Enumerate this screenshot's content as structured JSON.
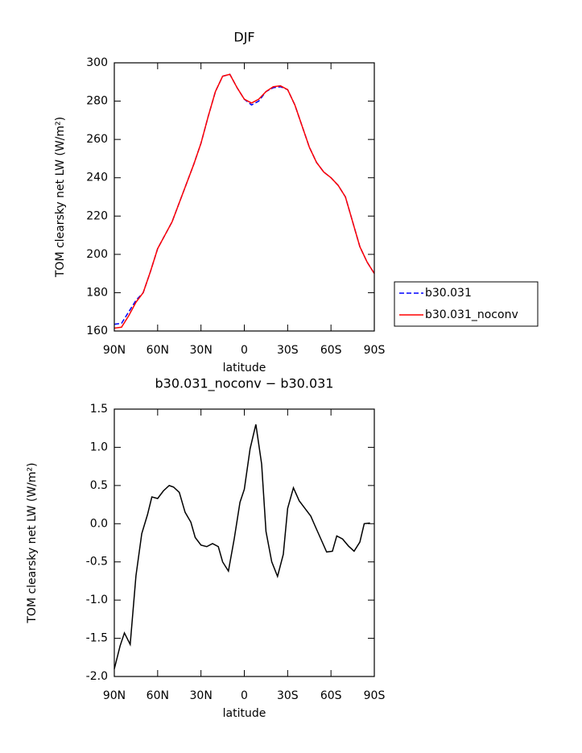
{
  "chart_data": [
    {
      "type": "line",
      "title": "DJF",
      "x_label": "latitude",
      "y_label": "TOM clearsky net LW (W/m²)",
      "x": [
        90,
        85,
        80,
        75,
        70,
        65,
        60,
        55,
        50,
        45,
        40,
        35,
        30,
        25,
        20,
        15,
        10,
        5,
        0,
        -5,
        -10,
        -15,
        -20,
        -25,
        -30,
        -35,
        -40,
        -45,
        -50,
        -55,
        -60,
        -65,
        -70,
        -75,
        -80,
        -85,
        -90
      ],
      "series": [
        {
          "name": "b30.031",
          "color": "#0000ff",
          "dashed": true,
          "values": [
            163.5,
            164,
            170,
            176,
            180,
            191,
            203,
            210,
            217,
            227,
            237,
            247,
            258,
            272,
            285,
            293,
            294,
            287,
            281,
            278,
            280,
            285,
            287,
            287.5,
            286,
            278,
            267,
            256,
            248,
            243,
            240,
            236,
            230,
            217,
            204,
            196,
            190
          ]
        },
        {
          "name": "b30.031_noconv",
          "color": "#ff0000",
          "dashed": false,
          "values": [
            161.5,
            162,
            168,
            175,
            180,
            191,
            203,
            210,
            217,
            227,
            237,
            247,
            258,
            272,
            285,
            293,
            294,
            287,
            281,
            279,
            281,
            285,
            287.5,
            288,
            286,
            278,
            267,
            256,
            248,
            243,
            240,
            236,
            230,
            217,
            204,
            196,
            190
          ]
        }
      ],
      "xlim": [
        90,
        -90
      ],
      "xticks": [
        {
          "value": 90,
          "label": "90N"
        },
        {
          "value": 60,
          "label": "60N"
        },
        {
          "value": 30,
          "label": "30N"
        },
        0,
        {
          "value": -30,
          "label": "30S"
        },
        {
          "value": -60,
          "label": "60S"
        },
        {
          "value": -90,
          "label": "90S"
        }
      ],
      "ylim": [
        160,
        300
      ],
      "yticks": [
        160,
        180,
        200,
        220,
        240,
        260,
        280,
        300
      ],
      "legend": "right"
    },
    {
      "type": "line",
      "title": "b30.031_noconv − b30.031",
      "x_label": "latitude",
      "y_label": "TOM clearsky net LW (W/m²)",
      "x": [
        90,
        86,
        83,
        79,
        75,
        71,
        67,
        64,
        60,
        56,
        52,
        49,
        45,
        41,
        37,
        34,
        30,
        26,
        22,
        18,
        15,
        11,
        7,
        3,
        0,
        -4,
        -8,
        -12,
        -15,
        -19,
        -23,
        -27,
        -30,
        -34,
        -38,
        -42,
        -46,
        -49,
        -53,
        -57,
        -61,
        -64,
        -68,
        -72,
        -76,
        -80,
        -83,
        -87
      ],
      "series": [
        {
          "name": "b30.031_noconv − b30.031",
          "color": "#000000",
          "dashed": false,
          "values": [
            -1.9,
            -1.6,
            -1.43,
            -1.58,
            -0.68,
            -0.13,
            0.12,
            0.35,
            0.33,
            0.43,
            0.5,
            0.48,
            0.41,
            0.15,
            0.02,
            -0.18,
            -0.28,
            -0.3,
            -0.26,
            -0.3,
            -0.5,
            -0.62,
            -0.2,
            0.28,
            0.45,
            0.98,
            1.3,
            0.78,
            -0.1,
            -0.5,
            -0.69,
            -0.4,
            0.2,
            0.47,
            0.3,
            0.2,
            0.1,
            -0.03,
            -0.2,
            -0.37,
            -0.36,
            -0.16,
            -0.2,
            -0.29,
            -0.36,
            -0.24,
            0,
            0.01
          ]
        }
      ],
      "xlim": [
        90,
        -90
      ],
      "xticks": [
        {
          "value": 90,
          "label": "90N"
        },
        {
          "value": 60,
          "label": "60N"
        },
        {
          "value": 30,
          "label": "30N"
        },
        0,
        {
          "value": -30,
          "label": "30S"
        },
        {
          "value": -60,
          "label": "60S"
        },
        {
          "value": -90,
          "label": "90S"
        }
      ],
      "ylim": [
        -2,
        1.5
      ],
      "yticks": [
        {
          "value": -2,
          "label": "-2.0"
        },
        -1.5,
        {
          "value": -1,
          "label": "-1.0"
        },
        -0.5,
        {
          "value": 0,
          "label": "0.0"
        },
        0.5,
        {
          "value": 1,
          "label": "1.0"
        },
        1.5
      ]
    }
  ]
}
